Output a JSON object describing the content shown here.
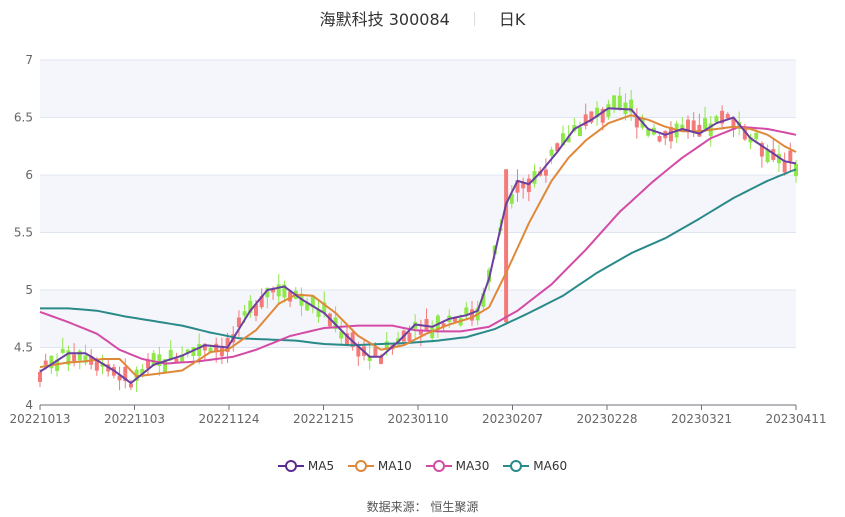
{
  "header": {
    "stock_name": "海默科技 300084",
    "period": "日K"
  },
  "legend": [
    {
      "label": "MA5",
      "color": "#5b2c8f"
    },
    {
      "label": "MA10",
      "color": "#e0883a"
    },
    {
      "label": "MA30",
      "color": "#d34ba5"
    },
    {
      "label": "MA60",
      "color": "#2a8a8a"
    }
  ],
  "source": "数据来源：  恒生聚源",
  "colors": {
    "up": "#f47a7a",
    "down": "#8ee84a",
    "band": "#f5f6fb",
    "grid": "#e0e6f1"
  },
  "chart_data": {
    "type": "candlestick",
    "title": "海默科技 300084 日K",
    "xlabel": "",
    "ylabel": "",
    "ylim": [
      4,
      7
    ],
    "yticks": [
      4,
      4.5,
      5,
      5.5,
      6,
      6.5,
      7
    ],
    "xticks": [
      "20221013",
      "20221103",
      "20221124",
      "20221215",
      "20230110",
      "20230207",
      "20230228",
      "20230321",
      "20230411"
    ],
    "grid": true,
    "legend_position": "bottom",
    "series_names": [
      "MA5",
      "MA10",
      "MA30",
      "MA60"
    ],
    "approx_ma_keypoints": {
      "MA5": [
        [
          0,
          4.29
        ],
        [
          5,
          4.45
        ],
        [
          8,
          4.45
        ],
        [
          13,
          4.3
        ],
        [
          16,
          4.19
        ],
        [
          20,
          4.35
        ],
        [
          25,
          4.43
        ],
        [
          29,
          4.52
        ],
        [
          33,
          4.5
        ],
        [
          37,
          4.82
        ],
        [
          40,
          5.0
        ],
        [
          43,
          5.03
        ],
        [
          46,
          4.92
        ],
        [
          50,
          4.8
        ],
        [
          54,
          4.6
        ],
        [
          58,
          4.42
        ],
        [
          60,
          4.42
        ],
        [
          63,
          4.55
        ],
        [
          66,
          4.7
        ],
        [
          69,
          4.68
        ],
        [
          72,
          4.75
        ],
        [
          75,
          4.78
        ],
        [
          77,
          4.82
        ],
        [
          79,
          5.1
        ],
        [
          82,
          5.75
        ],
        [
          84,
          5.95
        ],
        [
          86,
          5.92
        ],
        [
          88,
          6.02
        ],
        [
          91,
          6.2
        ],
        [
          94,
          6.4
        ],
        [
          97,
          6.48
        ],
        [
          100,
          6.58
        ],
        [
          104,
          6.57
        ],
        [
          107,
          6.4
        ],
        [
          110,
          6.35
        ],
        [
          113,
          6.4
        ],
        [
          116,
          6.36
        ],
        [
          119,
          6.45
        ],
        [
          122,
          6.5
        ],
        [
          125,
          6.32
        ],
        [
          128,
          6.22
        ],
        [
          131,
          6.12
        ],
        [
          133,
          6.1
        ]
      ],
      "MA10": [
        [
          0,
          4.33
        ],
        [
          5,
          4.37
        ],
        [
          8,
          4.38
        ],
        [
          11,
          4.4
        ],
        [
          14,
          4.4
        ],
        [
          17,
          4.25
        ],
        [
          22,
          4.28
        ],
        [
          25,
          4.3
        ],
        [
          30,
          4.46
        ],
        [
          33,
          4.48
        ],
        [
          38,
          4.65
        ],
        [
          42,
          4.88
        ],
        [
          45,
          4.96
        ],
        [
          48,
          4.95
        ],
        [
          52,
          4.8
        ],
        [
          56,
          4.6
        ],
        [
          60,
          4.48
        ],
        [
          64,
          4.52
        ],
        [
          68,
          4.62
        ],
        [
          72,
          4.7
        ],
        [
          76,
          4.76
        ],
        [
          79,
          4.85
        ],
        [
          82,
          5.15
        ],
        [
          86,
          5.58
        ],
        [
          90,
          5.95
        ],
        [
          93,
          6.15
        ],
        [
          96,
          6.3
        ],
        [
          100,
          6.45
        ],
        [
          104,
          6.52
        ],
        [
          107,
          6.48
        ],
        [
          110,
          6.42
        ],
        [
          113,
          6.38
        ],
        [
          116,
          6.38
        ],
        [
          119,
          6.4
        ],
        [
          122,
          6.42
        ],
        [
          125,
          6.4
        ],
        [
          128,
          6.35
        ],
        [
          131,
          6.25
        ],
        [
          133,
          6.2
        ]
      ],
      "MA30": [
        [
          0,
          4.81
        ],
        [
          5,
          4.72
        ],
        [
          10,
          4.62
        ],
        [
          14,
          4.48
        ],
        [
          18,
          4.4
        ],
        [
          22,
          4.36
        ],
        [
          28,
          4.38
        ],
        [
          34,
          4.42
        ],
        [
          38,
          4.48
        ],
        [
          44,
          4.6
        ],
        [
          50,
          4.67
        ],
        [
          56,
          4.69
        ],
        [
          62,
          4.69
        ],
        [
          66,
          4.65
        ],
        [
          70,
          4.64
        ],
        [
          74,
          4.64
        ],
        [
          79,
          4.68
        ],
        [
          84,
          4.82
        ],
        [
          90,
          5.05
        ],
        [
          96,
          5.35
        ],
        [
          102,
          5.68
        ],
        [
          108,
          5.95
        ],
        [
          113,
          6.15
        ],
        [
          118,
          6.32
        ],
        [
          123,
          6.42
        ],
        [
          128,
          6.4
        ],
        [
          133,
          6.35
        ]
      ],
      "MA60": [
        [
          0,
          4.84
        ],
        [
          5,
          4.84
        ],
        [
          10,
          4.82
        ],
        [
          15,
          4.77
        ],
        [
          20,
          4.73
        ],
        [
          25,
          4.69
        ],
        [
          30,
          4.63
        ],
        [
          35,
          4.58
        ],
        [
          40,
          4.57
        ],
        [
          45,
          4.56
        ],
        [
          50,
          4.53
        ],
        [
          55,
          4.52
        ],
        [
          60,
          4.53
        ],
        [
          65,
          4.54
        ],
        [
          70,
          4.56
        ],
        [
          75,
          4.59
        ],
        [
          80,
          4.66
        ],
        [
          86,
          4.8
        ],
        [
          92,
          4.95
        ],
        [
          98,
          5.15
        ],
        [
          104,
          5.32
        ],
        [
          110,
          5.45
        ],
        [
          116,
          5.62
        ],
        [
          122,
          5.8
        ],
        [
          128,
          5.95
        ],
        [
          133,
          6.05
        ]
      ]
    }
  }
}
